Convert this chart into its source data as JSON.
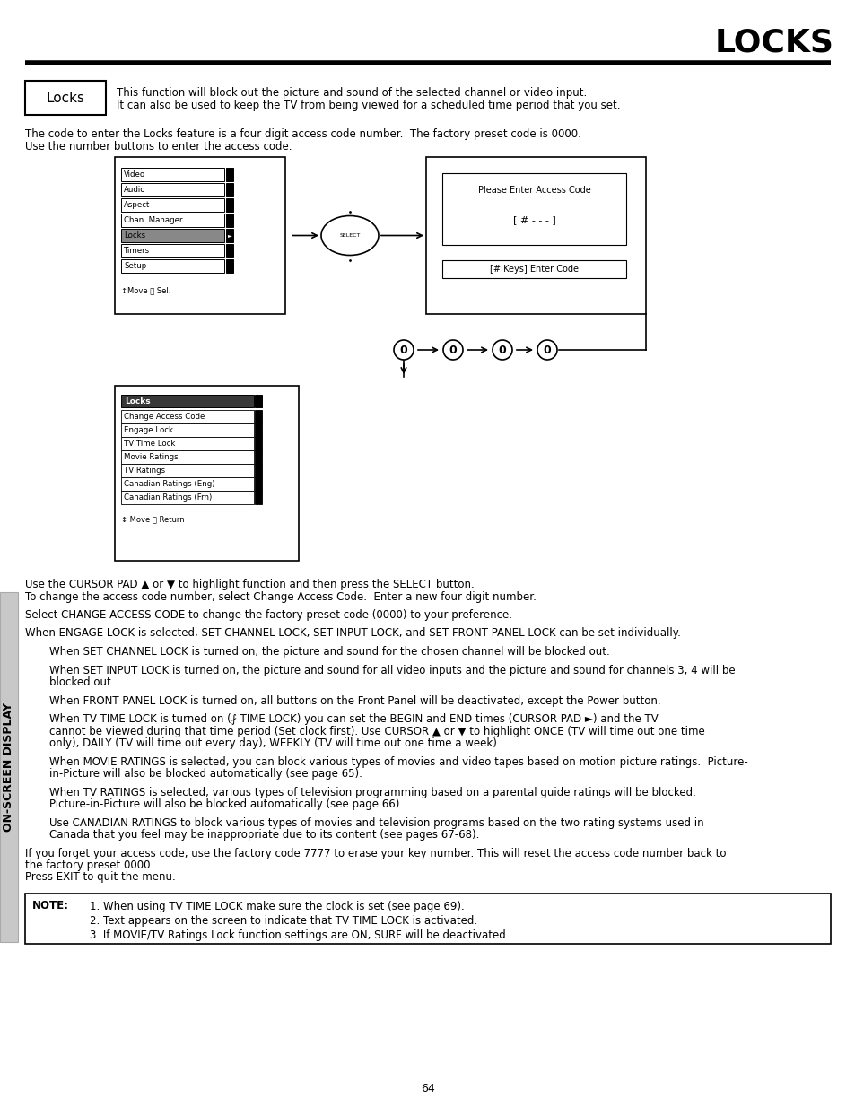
{
  "title": "LOCKS",
  "page_number": "64",
  "sidebar_text": "ON-SCREEN DISPLAY",
  "locks_box_label": "Locks",
  "locks_box_desc1": "This function will block out the picture and sound of the selected channel or video input.",
  "locks_box_desc2": "It can also be used to keep the TV from being viewed for a scheduled time period that you set.",
  "intro_text1": "The code to enter the Locks feature is a four digit access code number.  The factory preset code is 0000.",
  "intro_text2": "Use the number buttons to enter the access code.",
  "menu1_items": [
    "Video",
    "Audio",
    "Aspect",
    "Chan. Manager",
    "Locks",
    "Timers",
    "Setup"
  ],
  "menu1_footer": "↕Move ␤ Sel.",
  "access_code_title": "Please Enter Access Code",
  "access_code_display": "[ # - - - ]",
  "access_code_hint": "[# Keys] Enter Code",
  "menu2_title": "Locks",
  "menu2_items": [
    "Change Access Code",
    "Engage Lock",
    "TV Time Lock",
    "Movie Ratings",
    "TV Ratings",
    "Canadian Ratings (Eng)",
    "Canadian Ratings (Frn)"
  ],
  "menu2_footer": "↕ Move ␤ Return",
  "body_paragraphs": [
    "Use the CURSOR PAD ▲ or ▼ to highlight function and then press the SELECT button.\nTo change the access code number, select Change Access Code.  Enter a new four digit number.",
    "Select CHANGE ACCESS CODE to change the factory preset code (0000) to your preference.",
    "When ENGAGE LOCK is selected, SET CHANNEL LOCK, SET INPUT LOCK, and SET FRONT PANEL LOCK can be set individually.",
    "    When SET CHANNEL LOCK is turned on, the picture and sound for the chosen channel will be blocked out.",
    "    When SET INPUT LOCK is turned on, the picture and sound for all video inputs and the picture and sound for channels 3, 4 will be\n    blocked out.",
    "    When FRONT PANEL LOCK is turned on, all buttons on the Front Panel will be deactivated, except the Power button.",
    "    When TV TIME LOCK is turned on (⨏ TIME LOCK) you can set the BEGIN and END times (CURSOR PAD ►) and the TV\n    cannot be viewed during that time period (Set clock first). Use CURSOR ▲ or ▼ to highlight ONCE (TV will time out one time\n    only), DAILY (TV will time out every day), WEEKLY (TV will time out one time a week).",
    "    When MOVIE RATINGS is selected, you can block various types of movies and video tapes based on motion picture ratings.  Picture-\n    in-Picture will also be blocked automatically (see page 65).",
    "    When TV RATINGS is selected, various types of television programming based on a parental guide ratings will be blocked.\n    Picture-in-Picture will also be blocked automatically (see page 66).",
    "    Use CANADIAN RATINGS to block various types of movies and television programs based on the two rating systems used in\n    Canada that you feel may be inappropriate due to its content (see pages 67-68).",
    "If you forget your access code, use the factory code 7777 to erase your key number. This will reset the access code number back to\nthe factory preset 0000.\nPress EXIT to quit the menu."
  ],
  "note_label": "NOTE:",
  "note_items": [
    "1. When using TV TIME LOCK make sure the clock is set (see page 69).",
    "2. Text appears on the screen to indicate that TV TIME LOCK is activated.",
    "3. If MOVIE/TV Ratings Lock function settings are ON, SURF will be deactivated."
  ],
  "bg_color": "#ffffff",
  "text_color": "#000000",
  "sidebar_bg": "#c8c8c8"
}
